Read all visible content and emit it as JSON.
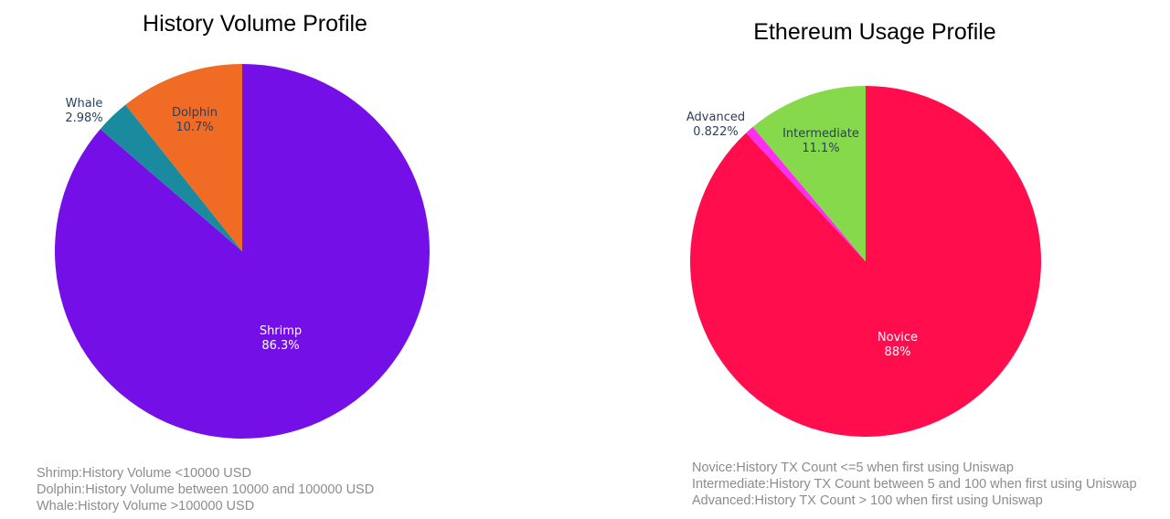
{
  "chart_data": [
    {
      "type": "pie",
      "title": "History Volume Profile",
      "slices": [
        {
          "label": "Shrimp",
          "value": 86.3,
          "display": "86.3%",
          "color": "#750FE8"
        },
        {
          "label": "Whale",
          "value": 2.98,
          "display": "2.98%",
          "color": "#1A8A9E"
        },
        {
          "label": "Dolphin",
          "value": 10.7,
          "display": "10.7%",
          "color": "#F06C25"
        }
      ],
      "notes": [
        "Shrimp:History Volume <10000 USD",
        "Dolphin:History Volume between 10000 and 100000 USD",
        "Whale:History Volume >100000 USD"
      ]
    },
    {
      "type": "pie",
      "title": "Ethereum Usage Profile",
      "slices": [
        {
          "label": "Novice",
          "value": 88,
          "display": "88%",
          "color": "#FF0D4D"
        },
        {
          "label": "Advanced",
          "value": 0.822,
          "display": "0.822%",
          "color": "#FF2EF0"
        },
        {
          "label": "Intermediate",
          "value": 11.1,
          "display": "11.1%",
          "color": "#86D94A"
        }
      ],
      "notes": [
        "Novice:History TX Count  <=5 when first using Uniswap",
        "Intermediate:History TX Count between 5 and 100 when first using Uniswap",
        "Advanced:History TX Count > 100 when first using Uniswap"
      ]
    }
  ]
}
